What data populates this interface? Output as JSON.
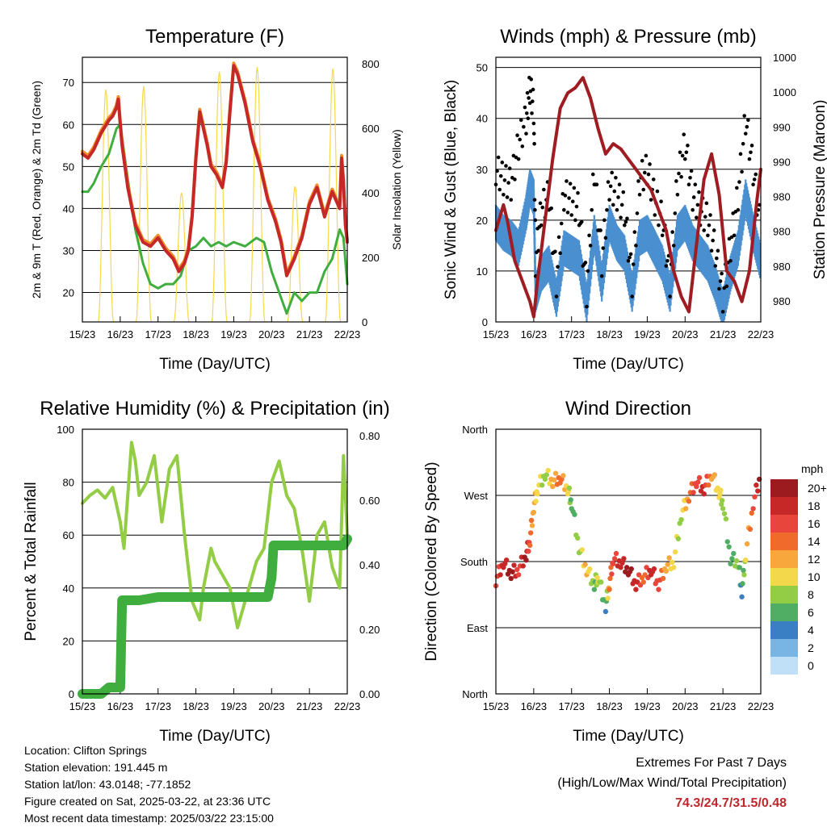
{
  "chart_data": [
    {
      "type": "line",
      "title": "Temperature (F)",
      "xlabel": "Time (Day/UTC)",
      "ylabel": "2m & 9m T (Red, Orange) & 2m Td (Green)",
      "y2label": "Solar Insolation (Yellow)",
      "x_ticks": [
        "15/23",
        "16/23",
        "17/23",
        "18/23",
        "19/23",
        "20/23",
        "21/23",
        "22/23"
      ],
      "xlim": [
        0,
        7
      ],
      "ylim": [
        13,
        76
      ],
      "y_ticks": [
        20,
        30,
        40,
        50,
        60,
        70
      ],
      "y2lim": [
        0,
        820
      ],
      "y2_ticks": [
        0,
        200,
        400,
        600,
        800
      ],
      "grid": true,
      "colors": {
        "t2m": "#c62828",
        "t9m": "#f08c2a",
        "td": "#3fae3f",
        "solar": "#f5d94a"
      },
      "series": [
        {
          "key": "t2m",
          "x": [
            0,
            0.15,
            0.3,
            0.5,
            0.7,
            0.8,
            0.9,
            0.95,
            1.0,
            1.05,
            1.2,
            1.4,
            1.6,
            1.8,
            2.0,
            2.2,
            2.4,
            2.55,
            2.7,
            2.8,
            2.9,
            3.0,
            3.1,
            3.3,
            3.4,
            3.55,
            3.7,
            3.8,
            3.9,
            4.0,
            4.1,
            4.3,
            4.5,
            4.7,
            4.9,
            5.1,
            5.25,
            5.4,
            5.6,
            5.8,
            6.0,
            6.2,
            6.4,
            6.6,
            6.8,
            6.85,
            6.9,
            6.95,
            7.0
          ],
          "values": [
            53,
            52,
            54,
            58,
            61,
            62,
            64,
            66,
            60,
            55,
            45,
            36,
            32,
            31,
            33,
            30,
            28,
            25,
            27,
            30,
            38,
            52,
            63,
            55,
            50,
            48,
            45,
            51,
            63,
            74,
            72,
            65,
            56,
            50,
            42,
            37,
            32,
            24,
            28,
            33,
            41,
            45,
            38,
            44,
            40,
            52,
            46,
            36,
            32
          ]
        },
        {
          "key": "td",
          "x": [
            0,
            0.15,
            0.3,
            0.5,
            0.7,
            0.8,
            0.9,
            1.0,
            1.2,
            1.4,
            1.6,
            1.8,
            2.0,
            2.2,
            2.4,
            2.6,
            2.8,
            3.0,
            3.2,
            3.4,
            3.6,
            3.8,
            4.0,
            4.3,
            4.6,
            4.8,
            5.0,
            5.2,
            5.4,
            5.6,
            5.8,
            6.0,
            6.2,
            6.4,
            6.6,
            6.8,
            6.9,
            7.0
          ],
          "values": [
            44,
            44,
            46,
            50,
            53,
            56,
            59,
            60,
            47,
            35,
            27,
            22,
            21,
            22,
            22,
            24,
            30,
            31,
            33,
            31,
            32,
            31,
            32,
            31,
            33,
            32,
            25,
            20,
            15,
            20,
            18,
            20,
            20,
            25,
            28,
            35,
            33,
            22
          ]
        },
        {
          "key": "solar",
          "days": [
            0.62,
            1.62,
            2.62,
            3.62,
            4.62,
            5.62,
            6.62
          ],
          "peaks": [
            720,
            730,
            400,
            775,
            790,
            420,
            785
          ]
        }
      ]
    },
    {
      "type": "line",
      "title": "Winds (mph) & Pressure (mb)",
      "xlabel": "Time (Day/UTC)",
      "ylabel": "Sonic Wind & Gust (Blue, Black)",
      "y2label": "Station Pressure (Maroon)",
      "x_ticks": [
        "15/23",
        "16/23",
        "17/23",
        "18/23",
        "19/23",
        "20/23",
        "21/23",
        "22/23"
      ],
      "xlim": [
        0,
        7
      ],
      "ylim": [
        0,
        52
      ],
      "y_ticks": [
        0,
        10,
        20,
        30,
        40,
        50
      ],
      "y2_tick_labels": [
        "980",
        "980",
        "980",
        "980",
        "990",
        "990",
        "1000",
        "1000"
      ],
      "grid": true,
      "colors": {
        "wind": "#4a90d0",
        "gust": "#000000",
        "pressure": "#a01c23"
      },
      "series": [
        {
          "key": "wind",
          "x": [
            0,
            0.2,
            0.4,
            0.6,
            0.8,
            0.9,
            1.0,
            1.05,
            1.2,
            1.4,
            1.6,
            1.8,
            2.0,
            2.2,
            2.4,
            2.6,
            2.8,
            3.0,
            3.2,
            3.4,
            3.6,
            3.8,
            4.0,
            4.2,
            4.4,
            4.6,
            4.8,
            5.0,
            5.2,
            5.4,
            5.6,
            5.8,
            6.0,
            6.2,
            6.4,
            6.6,
            6.8,
            7.0
          ],
          "values": [
            20,
            18,
            17,
            15,
            22,
            27,
            25,
            6,
            10,
            12,
            5,
            15,
            14,
            13,
            4,
            18,
            8,
            20,
            16,
            14,
            6,
            17,
            18,
            15,
            12,
            6,
            18,
            20,
            16,
            14,
            12,
            8,
            3,
            10,
            15,
            25,
            18,
            12
          ]
        },
        {
          "key": "gust",
          "x": [
            0,
            0.2,
            0.4,
            0.6,
            0.8,
            0.9,
            1.0,
            1.05,
            1.2,
            1.4,
            1.6,
            1.8,
            2.0,
            2.2,
            2.4,
            2.6,
            2.8,
            3.0,
            3.2,
            3.4,
            3.6,
            3.8,
            4.0,
            4.2,
            4.4,
            4.6,
            4.8,
            5.0,
            5.2,
            5.4,
            5.6,
            5.8,
            6.0,
            6.2,
            6.4,
            6.6,
            6.8,
            7.0
          ],
          "values": [
            30,
            28,
            27,
            35,
            40,
            46,
            42,
            12,
            22,
            25,
            8,
            25,
            24,
            22,
            6,
            30,
            12,
            27,
            25,
            22,
            8,
            28,
            30,
            24,
            20,
            8,
            28,
            35,
            25,
            22,
            20,
            14,
            5,
            15,
            25,
            40,
            30,
            18
          ]
        },
        {
          "key": "pressure",
          "x": [
            0,
            0.2,
            0.3,
            0.5,
            0.7,
            0.9,
            1.0,
            1.1,
            1.3,
            1.5,
            1.7,
            1.9,
            2.1,
            2.3,
            2.5,
            2.7,
            2.9,
            3.1,
            3.3,
            3.5,
            3.7,
            3.9,
            4.1,
            4.3,
            4.5,
            4.7,
            4.9,
            5.1,
            5.3,
            5.5,
            5.7,
            5.9,
            6.1,
            6.3,
            6.5,
            6.7,
            6.9,
            7.0
          ],
          "values": [
            18,
            23,
            20,
            12,
            8,
            4,
            1,
            8,
            20,
            32,
            42,
            45,
            46,
            48,
            44,
            38,
            33,
            35,
            34,
            32,
            30,
            28,
            26,
            22,
            18,
            10,
            5,
            2,
            15,
            28,
            33,
            25,
            10,
            8,
            4,
            10,
            24,
            30
          ]
        }
      ]
    },
    {
      "type": "line",
      "title": "Relative Humidity (%) & Precipitation (in)",
      "xlabel": "Time (Day/UTC)",
      "ylabel": "Percent & Total Rainfall",
      "x_ticks": [
        "15/23",
        "16/23",
        "17/23",
        "18/23",
        "19/23",
        "20/23",
        "21/23",
        "22/23"
      ],
      "xlim": [
        0,
        7
      ],
      "ylim": [
        0,
        100
      ],
      "y_ticks": [
        0,
        20,
        40,
        60,
        80,
        100
      ],
      "y2lim": [
        0,
        0.82
      ],
      "y2_ticks": [
        "0.00",
        "0.20",
        "0.40",
        "0.60",
        "0.80"
      ],
      "grid": true,
      "colors": {
        "rh": "#93cc45",
        "precip": "#3fae3f"
      },
      "series": [
        {
          "key": "rh",
          "x": [
            0,
            0.2,
            0.4,
            0.6,
            0.8,
            1.0,
            1.1,
            1.3,
            1.4,
            1.5,
            1.7,
            1.9,
            2.1,
            2.3,
            2.5,
            2.7,
            2.9,
            3.1,
            3.2,
            3.4,
            3.5,
            3.7,
            3.9,
            4.1,
            4.2,
            4.4,
            4.6,
            4.8,
            5.0,
            5.2,
            5.4,
            5.6,
            5.8,
            6.0,
            6.2,
            6.4,
            6.6,
            6.8,
            6.9,
            7.0
          ],
          "values": [
            72,
            75,
            77,
            74,
            78,
            65,
            55,
            95,
            88,
            75,
            80,
            90,
            65,
            85,
            90,
            60,
            35,
            28,
            40,
            55,
            50,
            45,
            40,
            25,
            30,
            40,
            50,
            55,
            80,
            88,
            75,
            70,
            55,
            35,
            60,
            65,
            48,
            40,
            90,
            60
          ]
        },
        {
          "key": "precip",
          "x": [
            0,
            0.5,
            0.7,
            0.85,
            0.95,
            1.0,
            1.05,
            1.5,
            2.0,
            3.0,
            4.0,
            4.9,
            5.0,
            5.05,
            5.5,
            6.0,
            6.9,
            7.0
          ],
          "values": [
            0,
            0,
            0.02,
            0.02,
            0.02,
            0.02,
            0.29,
            0.29,
            0.3,
            0.3,
            0.3,
            0.3,
            0.36,
            0.46,
            0.46,
            0.46,
            0.46,
            0.48
          ]
        }
      ]
    },
    {
      "type": "scatter",
      "title": "Wind Direction",
      "xlabel": "Time (Day/UTC)",
      "ylabel": "Direction (Colored By Speed)",
      "x_ticks": [
        "15/23",
        "16/23",
        "17/23",
        "18/23",
        "19/23",
        "20/23",
        "21/23",
        "22/23"
      ],
      "xlim": [
        0,
        7
      ],
      "ylim": [
        0,
        360
      ],
      "y_tick_values": [
        0,
        90,
        180,
        270,
        360
      ],
      "y_tick_labels": [
        "North",
        "East",
        "South",
        "West",
        "North"
      ],
      "grid": true,
      "colorbar": {
        "title": "mph",
        "labels": [
          "20+",
          "18",
          "16",
          "14",
          "12",
          "10",
          "8",
          "6",
          "4",
          "2",
          "0"
        ],
        "colors": [
          "#9b1b1e",
          "#c62828",
          "#e8453c",
          "#f06a2c",
          "#f7a73b",
          "#f3d84c",
          "#93cc45",
          "#4fae63",
          "#3a7fc4",
          "#78b5e4",
          "#bfe0f7"
        ]
      },
      "series": [
        {
          "name": "direction",
          "x": [
            0,
            0.2,
            0.4,
            0.6,
            0.8,
            0.9,
            1.0,
            1.1,
            1.3,
            1.5,
            1.7,
            1.9,
            2.0,
            2.2,
            2.4,
            2.6,
            2.7,
            2.9,
            3.0,
            3.1,
            3.3,
            3.5,
            3.7,
            3.9,
            4.1,
            4.3,
            4.5,
            4.7,
            4.9,
            5.1,
            5.3,
            5.5,
            5.7,
            5.9,
            6.0,
            6.2,
            6.4,
            6.5,
            6.6,
            6.8,
            7.0
          ],
          "values": [
            155,
            180,
            165,
            170,
            190,
            210,
            255,
            280,
            300,
            290,
            295,
            280,
            260,
            200,
            170,
            150,
            160,
            120,
            150,
            185,
            180,
            170,
            150,
            160,
            170,
            150,
            175,
            180,
            245,
            270,
            290,
            280,
            300,
            275,
            260,
            185,
            180,
            140,
            190,
            260,
            300
          ],
          "speeds": [
            16,
            18,
            20,
            16,
            20,
            14,
            12,
            10,
            8,
            12,
            14,
            10,
            6,
            8,
            12,
            6,
            10,
            4,
            14,
            16,
            18,
            20,
            18,
            14,
            18,
            16,
            12,
            10,
            8,
            14,
            16,
            18,
            12,
            10,
            8,
            6,
            8,
            4,
            10,
            16,
            20
          ]
        }
      ]
    }
  ],
  "info": {
    "location": "Location: Clifton Springs",
    "elevation": "Station elevation: 191.445 m",
    "latlon": "Station lat/lon: 43.0148; -77.1852",
    "created": "Figure created on Sat, 2025-03-22, at 23:36 UTC",
    "recent": "Most recent data timestamp: 2025/03/22 23:15:00"
  },
  "extremes": {
    "title": "Extremes For Past 7 Days",
    "subtitle": "(High/Low/Max Wind/Total Precipitation)",
    "values": "74.3/24.7/31.5/0.48"
  }
}
